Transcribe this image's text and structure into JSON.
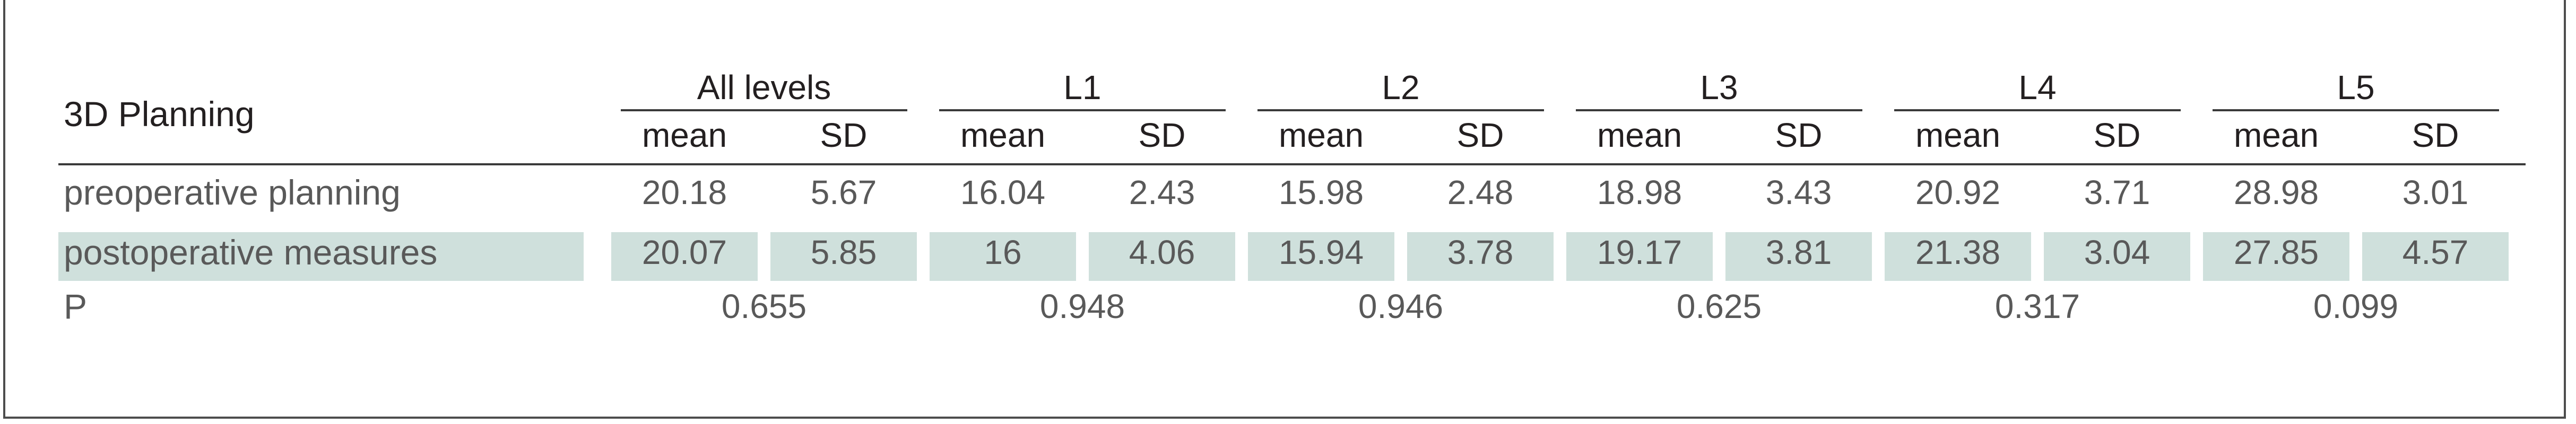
{
  "table": {
    "corner_label": "3D Planning",
    "groups": [
      "All levels",
      "L1",
      "L2",
      "L3",
      "L4",
      "L5"
    ],
    "subheaders": [
      "mean",
      "SD",
      "mean",
      "SD",
      "mean",
      "SD",
      "mean",
      "SD",
      "mean",
      "SD",
      "mean",
      "SD"
    ],
    "rows": [
      {
        "label": "preoperative planning",
        "values": [
          "20.18",
          "5.67",
          "16.04",
          "2.43",
          "15.98",
          "2.48",
          "18.98",
          "3.43",
          "20.92",
          "3.71",
          "28.98",
          "3.01"
        ]
      },
      {
        "label": "postoperative measures",
        "values": [
          "20.07",
          "5.85",
          "16",
          "4.06",
          "15.94",
          "3.78",
          "19.17",
          "3.81",
          "21.38",
          "3.04",
          "27.85",
          "4.57"
        ]
      }
    ],
    "p_row": {
      "label": "P",
      "values": [
        "0.655",
        "0.948",
        "0.946",
        "0.625",
        "0.317",
        "0.099"
      ]
    },
    "shade_color": "#cfe0dc"
  }
}
